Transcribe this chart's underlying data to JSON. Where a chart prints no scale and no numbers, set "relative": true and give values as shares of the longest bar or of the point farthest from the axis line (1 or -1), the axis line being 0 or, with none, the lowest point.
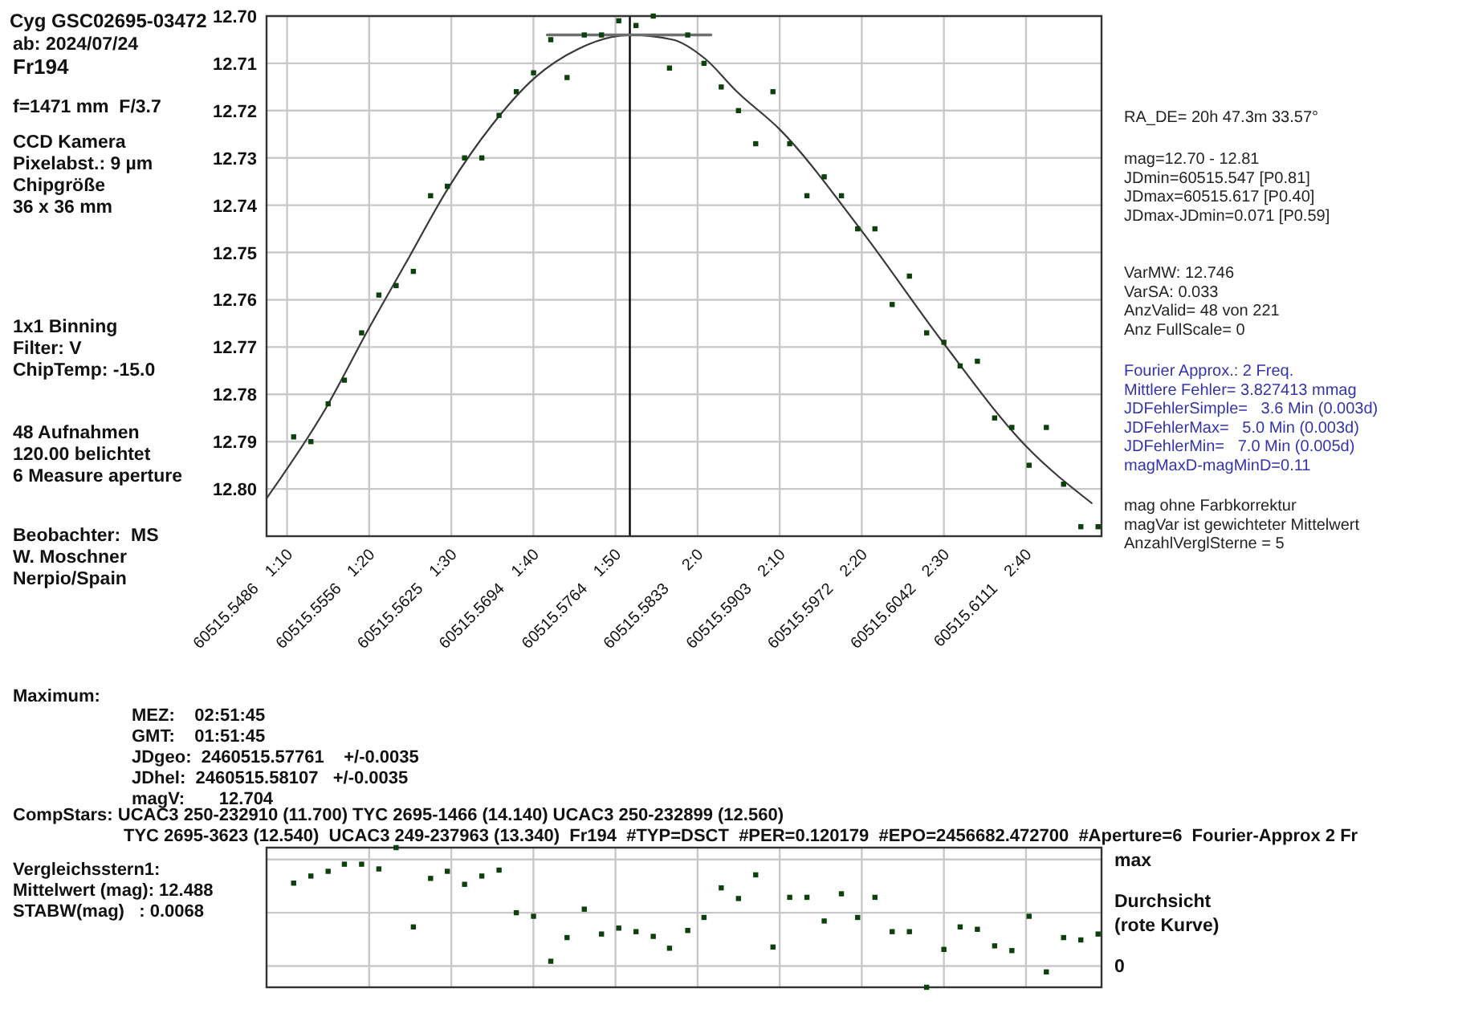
{
  "chart_data": [
    {
      "type": "scatter",
      "title": "Cyg GSC02695-03472",
      "subtitle": "ab: 2024/07/24",
      "annotations": [
        "Fr194",
        "f=1471 mm  F/3.7",
        "CCD Kamera\nPixelabst.: 9 µm\nChipgröße\n36 x 36 mm",
        "1x1 Binning\nFilter: V\nChipTemp: -15.0",
        "48 Aufnahmen\n120.00 belichtet\n6 Measure aperture",
        "Beobachter:  MS\nW. Moschner\nNerpio/Spain",
        "RA_DE= 20h 47.3m 33.57°",
        "mag=12.70 - 12.81\nJDmin=60515.547 [P0.81]\nJDmax=60515.617 [P0.40]\nJDmax-JDmin=0.071 [P0.59]",
        "VarMW: 12.746\nVarSA: 0.033\nAnzValid= 48 von 221\nAnz FullScale= 0",
        "Fourier Approx.: 2 Freq.\nMittlere Fehler= 3.827413 mmag\nJDFehlerSimple=   3.6 Min (0.003d)\nJDFehlerMax=   5.0 Min (0.003d)\nJDFehlerMin=   7.0 Min (0.005d)\nmagMaxD-magMinD=0.11",
        "mag ohne Farbkorrektur\nmagVar ist gewichteter Mittelwert\nAnzahlVerglSterne = 5",
        "Maximum:",
        "MEZ:    02:51:45\nGMT:    01:51:45\nJDgeo:  2460515.57761    +/-0.0035\nJDhel:  2460515.58107   +/-0.0035\nmagV:       12.704",
        "CompStars: UCAC3 250-232910 (11.700) TYC 2695-1466 (14.140) UCAC3 250-232899 (12.560)",
        "TYC 2695-3623 (12.540)  UCAC3 249-237963 (13.340)  Fr194  #TYP=DSCT  #PER=0.120179  #EPO=2456682.472700  #Aperture=6  Fourier-Approx 2 Fr"
      ],
      "xlim": [
        1.125,
        2.82
      ],
      "ylim": [
        12.81,
        12.7
      ],
      "xticks": [
        {
          "value": 1.1667,
          "label": "1:10"
        },
        {
          "value": 1.3333,
          "label": "1:20"
        },
        {
          "value": 1.5,
          "label": "1:30"
        },
        {
          "value": 1.6667,
          "label": "1:40"
        },
        {
          "value": 1.8333,
          "label": "1:50"
        },
        {
          "value": 2,
          "label": "2:0"
        },
        {
          "value": 2.1667,
          "label": "2:10"
        },
        {
          "value": 2.3333,
          "label": "2:20"
        },
        {
          "value": 2.5,
          "label": "2:30"
        },
        {
          "value": 2.6667,
          "label": "2:40"
        }
      ],
      "x2lim": [
        60515.5486,
        60515.6111
      ],
      "x2ticks": [
        60515.5486,
        60515.5556,
        60515.5625,
        60515.5694,
        60515.5764,
        60515.5833,
        60515.5903,
        60515.5972,
        60515.6042,
        60515.6111
      ],
      "yticks": [
        {
          "value": 12.7,
          "label": "12.70"
        },
        12.71,
        12.72,
        12.73,
        12.74,
        12.75,
        12.76,
        12.77,
        12.78,
        12.79,
        {
          "value": 12.8,
          "label": "12.80"
        }
      ],
      "grid": true,
      "ref_lines": [
        {
          "axis": "x",
          "value": 1.8625,
          "color": "#000000"
        }
      ],
      "series": [
        {
          "color": "#0d400d",
          "marker": "square",
          "x": [
            1.18,
            1.215,
            1.25,
            1.283,
            1.318,
            1.353,
            1.388,
            1.423,
            1.458,
            1.492,
            1.527,
            1.562,
            1.597,
            1.632,
            1.667,
            1.702,
            1.735,
            1.77,
            1.805,
            1.84,
            1.875,
            1.91,
            1.943,
            1.98,
            2.013,
            2.048,
            2.083,
            2.118,
            2.153,
            2.187,
            2.222,
            2.257,
            2.292,
            2.325,
            2.36,
            2.395,
            2.43,
            2.465,
            2.5,
            2.533,
            2.568,
            2.603,
            2.638,
            2.673,
            2.708,
            2.743,
            2.778,
            2.813
          ],
          "values": [
            12.789,
            12.79,
            12.782,
            12.777,
            12.767,
            12.759,
            12.757,
            12.754,
            12.738,
            12.736,
            12.73,
            12.73,
            12.721,
            12.716,
            12.712,
            12.705,
            12.713,
            12.704,
            12.704,
            12.701,
            12.702,
            12.7,
            12.711,
            12.704,
            12.71,
            12.715,
            12.72,
            12.727,
            12.716,
            12.727,
            12.738,
            12.734,
            12.738,
            12.745,
            12.745,
            12.761,
            12.755,
            12.767,
            12.769,
            12.774,
            12.773,
            12.785,
            12.787,
            12.795,
            12.787,
            12.799,
            12.808,
            12.808
          ]
        },
        {
          "type": "line",
          "color": "#3a3a3a",
          "x": [
            1.125,
            1.245,
            1.333,
            1.409,
            1.496,
            1.583,
            1.67,
            1.757,
            1.863,
            1.95,
            2.015,
            2.08,
            2.167,
            2.33,
            2.498,
            2.667,
            2.8
          ],
          "values": [
            12.802,
            12.783,
            12.766,
            12.752,
            12.736,
            12.723,
            12.713,
            12.707,
            12.704,
            12.705,
            12.709,
            12.716,
            12.724,
            12.745,
            12.769,
            12.791,
            12.803
          ]
        },
        {
          "type": "line",
          "color": "#6e6e6e",
          "x": [
            1.695,
            2.027
          ],
          "values": [
            12.704,
            12.704
          ]
        }
      ]
    },
    {
      "type": "scatter",
      "annotations": [
        "Vergleichsstern1:",
        "Mittelwert (mag): 12.488",
        "STABW(mag)   : 0.0068"
      ],
      "relative": true,
      "xlim": [
        1.125,
        2.82
      ],
      "xticks": [
        1.3333,
        1.5,
        1.6667,
        1.8333,
        2,
        2.1667,
        2.3333,
        2.5,
        2.6667
      ],
      "tick_labels": false,
      "grid": "x",
      "marker": "square",
      "ref_lines": [
        {
          "axis": "y",
          "value": 0.9,
          "label": "max",
          "color": "#c8c8c8"
        },
        {
          "axis": "y",
          "value": 0.45,
          "label": "Durchsicht (rote Kurve)",
          "color": "#c8c8c8"
        },
        {
          "axis": "y",
          "value": 0,
          "label": "0",
          "color": "#c8c8c8"
        }
      ],
      "series": [
        {
          "color": "#0d400d",
          "x": [
            1.18,
            1.215,
            1.25,
            1.283,
            1.318,
            1.353,
            1.388,
            1.423,
            1.458,
            1.492,
            1.527,
            1.562,
            1.597,
            1.632,
            1.667,
            1.702,
            1.735,
            1.77,
            1.805,
            1.84,
            1.875,
            1.91,
            1.943,
            1.98,
            2.013,
            2.048,
            2.083,
            2.118,
            2.153,
            2.187,
            2.222,
            2.257,
            2.292,
            2.325,
            2.36,
            2.395,
            2.43,
            2.465,
            2.5,
            2.533,
            2.568,
            2.603,
            2.638,
            2.673,
            2.708,
            2.743,
            2.778,
            2.813
          ],
          "values": [
            0.7,
            0.76,
            0.8,
            0.86,
            0.86,
            0.82,
            1,
            0.33,
            0.74,
            0.8,
            0.69,
            0.76,
            0.81,
            0.45,
            0.42,
            0.04,
            0.24,
            0.48,
            0.27,
            0.32,
            0.29,
            0.25,
            0.15,
            0.3,
            0.41,
            0.66,
            0.57,
            0.77,
            0.16,
            0.58,
            0.58,
            0.38,
            0.61,
            0.41,
            0.58,
            0.29,
            0.29,
            -0.18,
            0.14,
            0.33,
            0.31,
            0.17,
            0.13,
            0.42,
            -0.05,
            0.24,
            0.22,
            0.27
          ]
        }
      ]
    }
  ]
}
